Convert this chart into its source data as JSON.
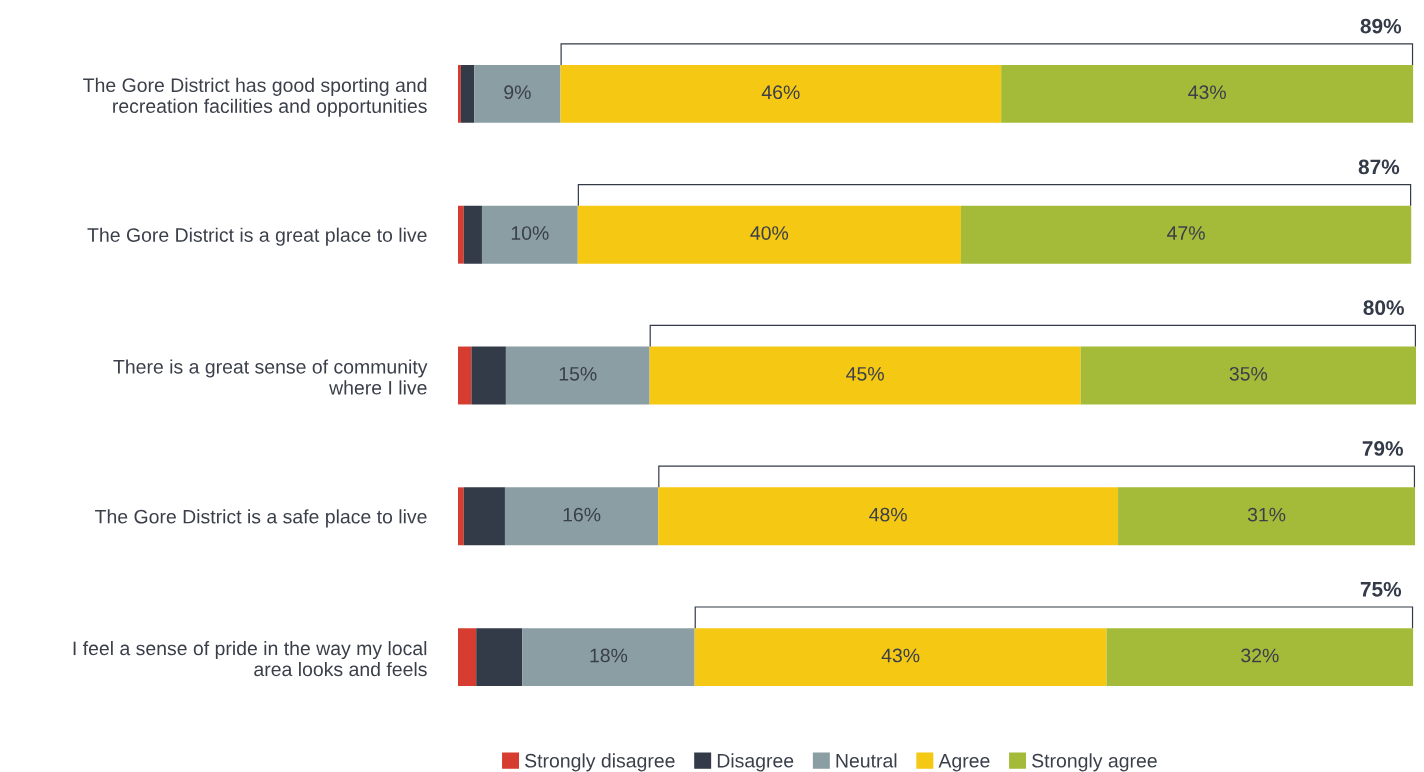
{
  "chart_data": {
    "type": "bar",
    "orientation": "horizontal",
    "stacked": true,
    "categories": [
      "The Gore District has good sporting and\nrecreation facilities and opportunities",
      "The Gore District is a great place to live",
      "There is a great sense of community\nwhere I live",
      "The Gore District is a safe place to live",
      "I feel a sense of pride in the way my local\narea looks and feels"
    ],
    "series": [
      {
        "name": "Strongly disagree",
        "color": "#d63c2f",
        "values": [
          0.3,
          0.6,
          1.4,
          0.6,
          1.9
        ],
        "value_labels": [
          null,
          null,
          null,
          null,
          null
        ]
      },
      {
        "name": "Disagree",
        "color": "#333a48",
        "values": [
          1.4,
          1.9,
          3.6,
          4.3,
          4.8
        ],
        "value_labels": [
          null,
          null,
          null,
          null,
          null
        ]
      },
      {
        "name": "Neutral",
        "color": "#8a9ea3",
        "values": [
          9,
          10,
          15,
          16,
          18
        ],
        "value_labels": [
          "9%",
          "10%",
          "15%",
          "16%",
          "18%"
        ]
      },
      {
        "name": "Agree",
        "color": "#f4c813",
        "values": [
          46,
          40,
          45,
          48,
          43
        ],
        "value_labels": [
          "46%",
          "40%",
          "45%",
          "48%",
          "43%"
        ]
      },
      {
        "name": "Strongly agree",
        "color": "#a4bb3a",
        "values": [
          43,
          47,
          35,
          31,
          32
        ],
        "value_labels": [
          "43%",
          "47%",
          "35%",
          "31%",
          "32%"
        ]
      }
    ],
    "annotations": [
      "89%",
      "87%",
      "80%",
      "79%",
      "75%"
    ],
    "xlim": [
      0,
      100
    ],
    "tick_labels": false,
    "grid": false,
    "legend": "bottom"
  }
}
